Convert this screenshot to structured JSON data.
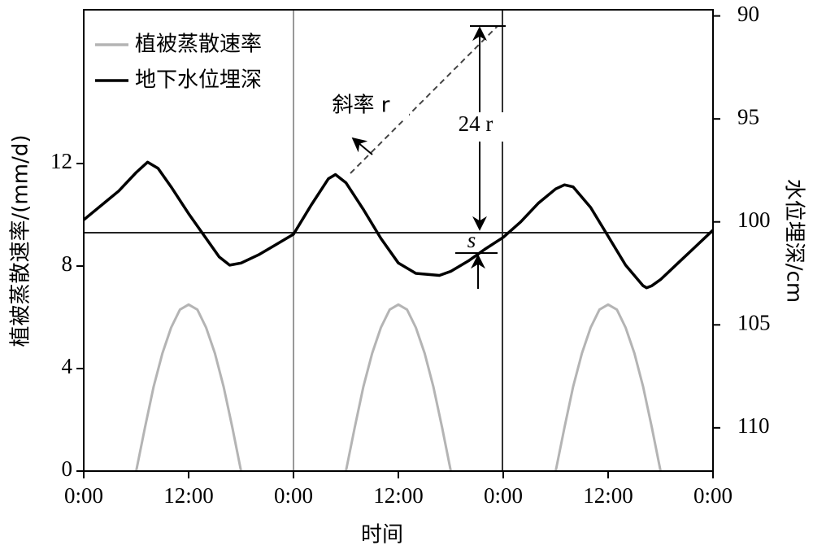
{
  "chart_data": {
    "type": "line",
    "x_label": "时间",
    "y_label": "植被蒸散速率/(mm/d)",
    "y2_label": "水位埋深/cm",
    "xlim": [
      0,
      72
    ],
    "xticks": [
      {
        "value": 0,
        "label": "0:00"
      },
      {
        "value": 12,
        "label": "12:00"
      },
      {
        "value": 24,
        "label": "0:00"
      },
      {
        "value": 36,
        "label": "12:00"
      },
      {
        "value": 48,
        "label": "0:00"
      },
      {
        "value": 60,
        "label": "12:00"
      },
      {
        "value": 72,
        "label": "0:00"
      }
    ],
    "ylim": [
      0,
      18
    ],
    "yticks": [
      0,
      4,
      8,
      12
    ],
    "y2lim": [
      89.7,
      112.1
    ],
    "y2_inverted": true,
    "y2ticks": [
      90,
      95,
      100,
      105,
      110
    ],
    "legend": "upper left",
    "annotations": [
      "斜率 r",
      "24 r",
      "s"
    ],
    "series": [
      {
        "name": "植被蒸散速率",
        "color": "#b4b4b4",
        "x": [
          6,
          7,
          8,
          9,
          10,
          11,
          12,
          13,
          14,
          15,
          16,
          17,
          18,
          24,
          30,
          31,
          32,
          33,
          34,
          35,
          36,
          37,
          38,
          39,
          40,
          41,
          42,
          48,
          54,
          55,
          56,
          57,
          58,
          59,
          60,
          61,
          62,
          63,
          64,
          65,
          66
        ],
        "values": [
          0,
          1.7,
          3.3,
          4.6,
          5.6,
          6.3,
          6.5,
          6.3,
          5.6,
          4.6,
          3.3,
          1.7,
          0,
          null,
          0,
          1.7,
          3.3,
          4.6,
          5.6,
          6.3,
          6.5,
          6.3,
          5.6,
          4.6,
          3.3,
          1.7,
          0,
          null,
          0,
          1.7,
          3.3,
          4.6,
          5.6,
          6.3,
          6.5,
          6.3,
          5.6,
          4.6,
          3.3,
          1.7,
          0
        ]
      },
      {
        "name": "地下水位埋深",
        "color": "#000000",
        "axis": "y2",
        "x": [
          0,
          2,
          4,
          6,
          7.3,
          8.5,
          10,
          12,
          14,
          15.5,
          16.7,
          18,
          20,
          22,
          24,
          26,
          28,
          28.8,
          30,
          32,
          34,
          36,
          38,
          40.7,
          42,
          44,
          46,
          48,
          50,
          52,
          54,
          55,
          56,
          58,
          60,
          62,
          64,
          64.4,
          65,
          66,
          68,
          70,
          72
        ],
        "values": [
          99.9,
          99.2,
          98.5,
          97.6,
          97.1,
          97.4,
          98.3,
          99.6,
          100.8,
          101.7,
          102.1,
          102.0,
          101.6,
          101.1,
          100.6,
          99.2,
          97.9,
          97.7,
          98.1,
          99.4,
          100.8,
          102.0,
          102.5,
          102.6,
          102.4,
          101.9,
          101.3,
          100.75,
          100.0,
          99.1,
          98.4,
          98.2,
          98.3,
          99.3,
          100.7,
          102.1,
          103.1,
          103.2,
          103.1,
          102.8,
          102.0,
          101.2,
          100.4
        ]
      }
    ]
  }
}
